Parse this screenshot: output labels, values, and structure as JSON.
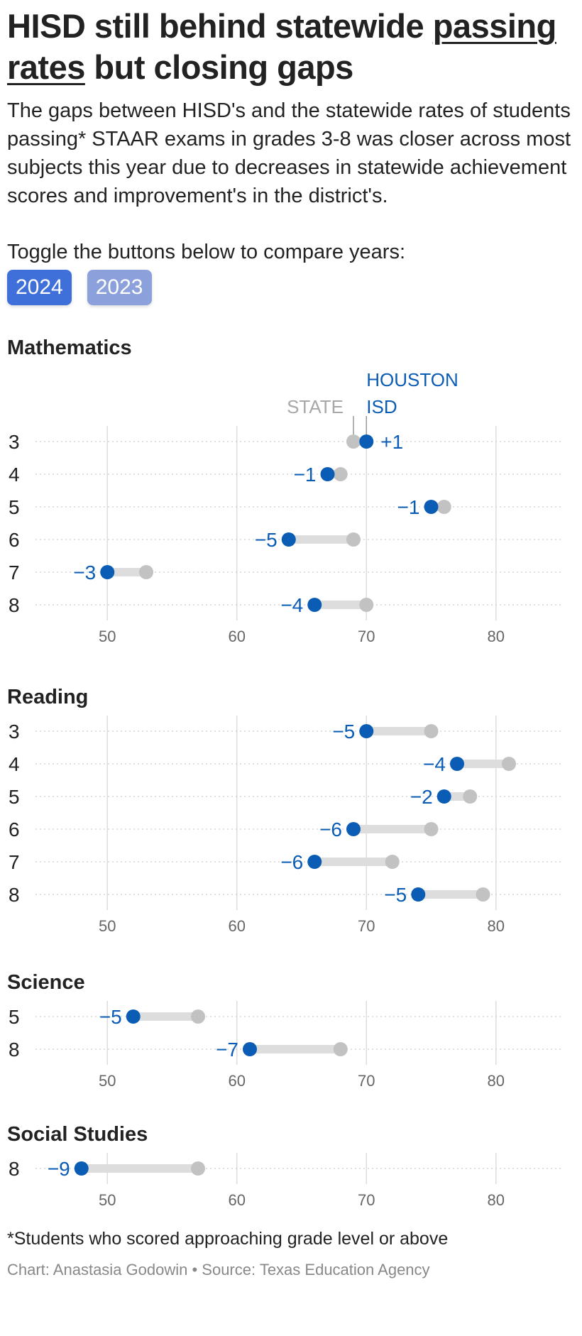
{
  "header": {
    "title_part1": "HISD still behind statewide ",
    "title_link": "passing rates",
    "title_part2": " but closing gaps",
    "description": "The gaps between HISD's and the statewide rates of students passing* STAAR exams in grades 3-8 was closer across most subjects this year due to decreases in statewide achievement scores and improvement's in the district's.",
    "toggle_label": "Toggle the buttons below to compare years:"
  },
  "buttons": [
    {
      "label": "2024",
      "active": true
    },
    {
      "label": "2023",
      "active": false
    }
  ],
  "legend": {
    "state_label": "STATE",
    "houston_line1": "HOUSTON",
    "houston_line2": "ISD"
  },
  "colors": {
    "houston": "#0b5cb5",
    "state": "#c2c2c2",
    "bar": "#dddddd",
    "grid": "#dddddd",
    "axis_text": "#666666"
  },
  "chart_data": [
    {
      "type": "dumbbell",
      "title": "Mathematics",
      "xlim": [
        45,
        85
      ],
      "xticks": [
        50,
        60,
        70,
        80
      ],
      "rows": [
        {
          "grade": "3",
          "state": 69,
          "houston": 70,
          "gap": "+1"
        },
        {
          "grade": "4",
          "state": 68,
          "houston": 67,
          "gap": "−1"
        },
        {
          "grade": "5",
          "state": 76,
          "houston": 75,
          "gap": "−1"
        },
        {
          "grade": "6",
          "state": 69,
          "houston": 64,
          "gap": "−5"
        },
        {
          "grade": "7",
          "state": 53,
          "houston": 50,
          "gap": "−3"
        },
        {
          "grade": "8",
          "state": 70,
          "houston": 66,
          "gap": "−4"
        }
      ]
    },
    {
      "type": "dumbbell",
      "title": "Reading",
      "xlim": [
        45,
        85
      ],
      "xticks": [
        50,
        60,
        70,
        80
      ],
      "rows": [
        {
          "grade": "3",
          "state": 75,
          "houston": 70,
          "gap": "−5"
        },
        {
          "grade": "4",
          "state": 81,
          "houston": 77,
          "gap": "−4"
        },
        {
          "grade": "5",
          "state": 78,
          "houston": 76,
          "gap": "−2"
        },
        {
          "grade": "6",
          "state": 75,
          "houston": 69,
          "gap": "−6"
        },
        {
          "grade": "7",
          "state": 72,
          "houston": 66,
          "gap": "−6"
        },
        {
          "grade": "8",
          "state": 79,
          "houston": 74,
          "gap": "−5"
        }
      ]
    },
    {
      "type": "dumbbell",
      "title": "Science",
      "xlim": [
        45,
        85
      ],
      "xticks": [
        50,
        60,
        70,
        80
      ],
      "rows": [
        {
          "grade": "5",
          "state": 57,
          "houston": 52,
          "gap": "−5"
        },
        {
          "grade": "8",
          "state": 68,
          "houston": 61,
          "gap": "−7"
        }
      ]
    },
    {
      "type": "dumbbell",
      "title": "Social Studies",
      "xlim": [
        45,
        85
      ],
      "xticks": [
        50,
        60,
        70,
        80
      ],
      "rows": [
        {
          "grade": "8",
          "state": 57,
          "houston": 48,
          "gap": "−9"
        }
      ]
    }
  ],
  "footer": {
    "footnote": "*Students who scored approaching grade level or above",
    "credit": "Chart: Anastasia Godowin • Source: Texas Education Agency"
  }
}
